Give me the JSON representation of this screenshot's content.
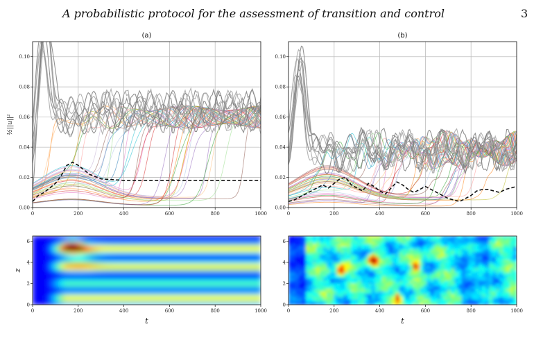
{
  "header": {
    "running_title": "A probabilistic protocol for the assessment of transition and control",
    "page_number": "3"
  },
  "chart_data": [
    {
      "type": "line",
      "panel": "top-left",
      "title": "(a)",
      "xlabel": "",
      "ylabel": "½||u||²",
      "xlim": [
        0,
        1000
      ],
      "ylim": [
        0,
        0.11
      ],
      "xticks": [
        "0",
        "200",
        "400",
        "600",
        "800",
        "1000"
      ],
      "yticks": [
        "0.00",
        "0.02",
        "0.04",
        "0.06",
        "0.08",
        "0.10"
      ],
      "grid": true,
      "mean_curve": {
        "x": [
          0,
          25,
          50,
          75,
          100,
          125,
          150,
          175,
          200,
          250,
          300,
          350,
          400,
          500,
          600,
          700,
          800,
          900,
          1000
        ],
        "y": [
          0.004,
          0.008,
          0.01,
          0.013,
          0.016,
          0.021,
          0.028,
          0.03,
          0.028,
          0.022,
          0.019,
          0.0185,
          0.018,
          0.018,
          0.018,
          0.018,
          0.018,
          0.018,
          0.018
        ]
      },
      "turbulent_level": 0.06,
      "initial_peak": 0.09
    },
    {
      "type": "line",
      "panel": "top-right",
      "title": "(b)",
      "xlabel": "",
      "ylabel": "",
      "xlim": [
        0,
        1000
      ],
      "ylim": [
        0,
        0.11
      ],
      "xticks": [
        "0",
        "200",
        "400",
        "600",
        "800",
        "1000"
      ],
      "yticks": [
        "0.00",
        "0.02",
        "0.04",
        "0.06",
        "0.08",
        "0.10"
      ],
      "grid": true,
      "mean_curve": {
        "x": [
          0,
          25,
          50,
          75,
          100,
          125,
          150,
          175,
          200,
          225,
          250,
          275,
          300,
          325,
          350,
          375,
          400,
          425,
          450,
          475,
          500,
          525,
          550,
          575,
          600,
          625,
          650,
          675,
          700,
          725,
          750,
          775,
          800,
          825,
          850,
          875,
          900,
          925,
          950,
          975,
          1000
        ],
        "y": [
          0.004,
          0.005,
          0.007,
          0.009,
          0.011,
          0.013,
          0.015,
          0.013,
          0.016,
          0.019,
          0.02,
          0.015,
          0.013,
          0.011,
          0.016,
          0.014,
          0.011,
          0.009,
          0.013,
          0.017,
          0.015,
          0.012,
          0.01,
          0.012,
          0.014,
          0.012,
          0.01,
          0.008,
          0.006,
          0.005,
          0.004,
          0.006,
          0.008,
          0.011,
          0.012,
          0.012,
          0.011,
          0.01,
          0.012,
          0.013,
          0.014
        ]
      },
      "turbulent_level": 0.038,
      "initial_peak": 0.08
    },
    {
      "type": "heatmap",
      "panel": "bottom-left",
      "title": "",
      "xlabel": "t",
      "ylabel": "z",
      "xlim": [
        0,
        1000
      ],
      "ylim": [
        0,
        6.5
      ],
      "xticks": [
        "0",
        "200",
        "400",
        "600",
        "800",
        "1000"
      ],
      "yticks": [
        "0",
        "2",
        "4",
        "6"
      ],
      "bands_z": [
        0.6,
        2.0,
        3.6,
        5.3
      ],
      "hotspot": {
        "t": 175,
        "z": 5.5
      },
      "colormap": "jet"
    },
    {
      "type": "heatmap",
      "panel": "bottom-right",
      "title": "",
      "xlabel": "t",
      "ylabel": "",
      "xlim": [
        0,
        1000
      ],
      "ylim": [
        0,
        6.5
      ],
      "xticks": [
        "0",
        "200",
        "400",
        "600",
        "800",
        "1000"
      ],
      "yticks": [
        "0",
        "2",
        "4",
        "6"
      ],
      "hotspots": [
        {
          "t": 230,
          "z": 3.2
        },
        {
          "t": 370,
          "z": 4.2
        },
        {
          "t": 480,
          "z": 0.6
        },
        {
          "t": 560,
          "z": 3.6
        }
      ],
      "colormap": "jet"
    }
  ]
}
